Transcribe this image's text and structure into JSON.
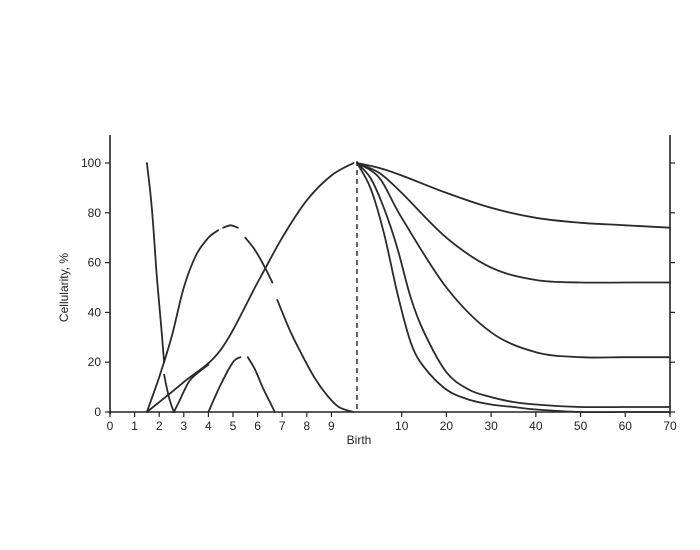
{
  "chart_data": {
    "type": "line",
    "title": "",
    "ylabel": "Cellularity, %",
    "xlabel": "Birth",
    "ylim": [
      0,
      100
    ],
    "y_ticks": [
      0,
      20,
      40,
      60,
      80,
      100
    ],
    "x_ticks_prenatal": [
      "0",
      "1",
      "2",
      "3",
      "4",
      "5",
      "6",
      "7",
      "8",
      "9"
    ],
    "x_ticks_postnatal": [
      "10",
      "20",
      "30",
      "40",
      "50",
      "60",
      "70"
    ],
    "birth_marker": "dashed vertical line at birth",
    "grid": false,
    "legend": "none",
    "series_prenatal": [
      {
        "x": [
          1.5,
          1.7,
          1.9,
          2.1,
          2.2
        ],
        "y": [
          100,
          82,
          55,
          32,
          20
        ]
      },
      {
        "x": [
          2.2,
          2.3,
          2.45,
          2.6
        ],
        "y": [
          15,
          10,
          4,
          0
        ]
      },
      {
        "x": [
          1.5,
          2.0,
          2.5,
          3.0,
          3.5,
          4.0,
          4.4
        ],
        "y": [
          0,
          14,
          30,
          50,
          63,
          70,
          73
        ]
      },
      {
        "x": [
          4.6,
          4.9,
          5.2
        ],
        "y": [
          74,
          75,
          74
        ]
      },
      {
        "x": [
          5.5,
          5.9,
          6.3,
          6.6
        ],
        "y": [
          70,
          65,
          58,
          52
        ]
      },
      {
        "x": [
          6.8,
          7.3,
          7.8,
          8.3,
          8.8,
          9.3,
          9.9
        ],
        "y": [
          45,
          33,
          23,
          14,
          7,
          2,
          0
        ]
      },
      {
        "x": [
          2.6,
          2.8,
          3.2,
          3.6,
          4.0
        ],
        "y": [
          0,
          4,
          12,
          16,
          19
        ]
      },
      {
        "x": [
          4.0,
          4.5,
          5.0,
          5.3
        ],
        "y": [
          0,
          11,
          20,
          22
        ]
      },
      {
        "x": [
          5.6,
          5.9,
          6.2,
          6.5,
          6.7
        ],
        "y": [
          22,
          17,
          10,
          4,
          0
        ]
      },
      {
        "x": [
          1.5,
          3.0,
          4.5,
          6.0,
          7.0,
          8.0,
          9.0,
          9.9
        ],
        "y": [
          0,
          12,
          25,
          52,
          70,
          85,
          95,
          100
        ]
      }
    ],
    "series_postnatal": [
      {
        "x": [
          0,
          5,
          10,
          20,
          30,
          40,
          50,
          60,
          70
        ],
        "y": [
          100,
          98,
          95,
          88,
          82,
          78,
          76,
          75,
          74
        ]
      },
      {
        "x": [
          0,
          5,
          10,
          20,
          30,
          40,
          50,
          60,
          70
        ],
        "y": [
          100,
          96,
          88,
          70,
          58,
          53,
          52,
          52,
          52
        ]
      },
      {
        "x": [
          0,
          5,
          10,
          20,
          30,
          40,
          50,
          60,
          70
        ],
        "y": [
          100,
          94,
          78,
          50,
          32,
          24,
          22,
          22,
          22
        ]
      },
      {
        "x": [
          0,
          3,
          6,
          9,
          12,
          15,
          20,
          25,
          30,
          35,
          40,
          50,
          60,
          70
        ],
        "y": [
          100,
          94,
          82,
          66,
          46,
          32,
          16,
          9,
          6,
          4,
          3,
          2,
          2,
          2
        ]
      },
      {
        "x": [
          0,
          3,
          6,
          9,
          12,
          15,
          20,
          25,
          30,
          35,
          40,
          50,
          60,
          70
        ],
        "y": [
          100,
          90,
          72,
          48,
          28,
          18,
          9,
          5,
          3,
          2,
          1,
          0,
          0,
          0
        ]
      }
    ]
  }
}
